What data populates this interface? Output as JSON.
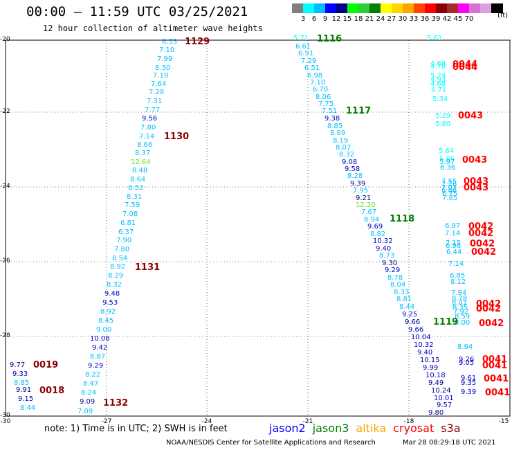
{
  "header": {
    "title": "00:00 – 11:59 UTC 03/25/2021",
    "subtitle": "12 hour collection of altimeter wave heights"
  },
  "legend": {
    "unit": "(ft)",
    "colors": [
      "#808080",
      "#00ffff",
      "#00bfff",
      "#0000ff",
      "#00008b",
      "#00ff00",
      "#32cd32",
      "#008000",
      "#ffff00",
      "#ffd700",
      "#ffa500",
      "#ff4500",
      "#ff0000",
      "#8b0000",
      "#a52a2a",
      "#ff00ff",
      "#da70d6",
      "#dda0dd",
      "#000000"
    ],
    "labels": [
      "3",
      "6",
      "9",
      "12",
      "15",
      "18",
      "21",
      "24",
      "27",
      "30",
      "33",
      "36",
      "39",
      "42",
      "45",
      "70"
    ]
  },
  "axes": {
    "y_ticks": [
      "-20",
      "-22",
      "-24",
      "-26",
      "-28",
      "-30"
    ],
    "x_ticks": [
      "-30",
      "-27",
      "-24",
      "-21",
      "-18",
      "-15"
    ]
  },
  "tracks": [
    {
      "points": [
        [
          "6.33",
          234,
          56,
          "#00bfff"
        ],
        [
          "7.10",
          230,
          68,
          "#00bfff"
        ],
        [
          "7.99",
          227,
          81,
          "#00bfff"
        ],
        [
          "8.30",
          224,
          94,
          "#00bfff"
        ],
        [
          "7.19",
          221,
          105,
          "#00bfff"
        ],
        [
          "7.64",
          218,
          117,
          "#00bfff"
        ],
        [
          "7.28",
          215,
          129,
          "#00bfff"
        ],
        [
          "7.31",
          212,
          142,
          "#00bfff"
        ],
        [
          "7.77",
          209,
          155,
          "#00bfff"
        ],
        [
          "9.56",
          205,
          167,
          "#0000cd"
        ],
        [
          "7.80",
          203,
          180,
          "#00bfff"
        ],
        [
          "7.14",
          201,
          193,
          "#00bfff"
        ],
        [
          "8.66",
          198,
          205,
          "#00bfff"
        ],
        [
          "8.37",
          195,
          217,
          "#00bfff"
        ],
        [
          "12.64",
          189,
          230,
          "#66dd22"
        ],
        [
          "8.48",
          191,
          242,
          "#00bfff"
        ],
        [
          "8.64",
          188,
          255,
          "#00bfff"
        ],
        [
          "8.52",
          185,
          267,
          "#00bfff"
        ],
        [
          "8.31",
          183,
          280,
          "#00bfff"
        ],
        [
          "7.59",
          180,
          292,
          "#00bfff"
        ],
        [
          "7.08",
          177,
          305,
          "#00bfff"
        ],
        [
          "6.81",
          174,
          318,
          "#00bfff"
        ],
        [
          "6.37",
          171,
          331,
          "#00bfff"
        ],
        [
          "7.90",
          168,
          343,
          "#00bfff"
        ],
        [
          "7.80",
          165,
          356,
          "#00bfff"
        ],
        [
          "8.54",
          162,
          369,
          "#00bfff"
        ],
        [
          "8.92",
          159,
          381,
          "#00bfff"
        ],
        [
          "8.29",
          156,
          394,
          "#00bfff"
        ],
        [
          "8.32",
          154,
          407,
          "#00bfff"
        ],
        [
          "9.48",
          151,
          420,
          "#0000cd"
        ],
        [
          "9.53",
          148,
          433,
          "#0000cd"
        ],
        [
          "8.92",
          145,
          446,
          "#00bfff"
        ],
        [
          "8.45",
          142,
          459,
          "#00bfff"
        ],
        [
          "9.00",
          139,
          472,
          "#00bfff"
        ],
        [
          "10.08",
          130,
          485,
          "#0000cd"
        ],
        [
          "9.42",
          133,
          498,
          "#0000cd"
        ],
        [
          "8.87",
          130,
          511,
          "#00bfff"
        ],
        [
          "9.29",
          127,
          524,
          "#0000cd"
        ],
        [
          "8.22",
          123,
          537,
          "#00bfff"
        ],
        [
          "8.47",
          120,
          550,
          "#00bfff"
        ],
        [
          "8.24",
          117,
          563,
          "#00bfff"
        ],
        [
          "9.09",
          115,
          576,
          "#00008b"
        ],
        [
          "7.09",
          112,
          590,
          "#00bfff"
        ]
      ]
    },
    {
      "points": [
        [
          "9.77",
          14,
          523,
          "#00008b"
        ],
        [
          "9.33",
          18,
          536,
          "#0000cd"
        ],
        [
          "8.85",
          20,
          549,
          "#00bfff"
        ],
        [
          "9.91",
          23,
          559,
          "#00008b"
        ],
        [
          "9.15",
          26,
          572,
          "#0000cd"
        ],
        [
          "8.44",
          29,
          585,
          "#00bfff"
        ]
      ]
    },
    {
      "points": [
        [
          "5.71",
          424,
          51,
          "#00ffff"
        ],
        [
          "6.61",
          427,
          63,
          "#00bfff"
        ],
        [
          "6.91",
          431,
          73,
          "#00bfff"
        ],
        [
          "7.29",
          435,
          84,
          "#00bfff"
        ],
        [
          "6.51",
          440,
          94,
          "#00bfff"
        ],
        [
          "6.98",
          444,
          105,
          "#00bfff"
        ],
        [
          "7.10",
          448,
          115,
          "#00bfff"
        ],
        [
          "6.70",
          452,
          125,
          "#00bfff"
        ],
        [
          "8.06",
          456,
          136,
          "#00bfff"
        ],
        [
          "7.75",
          460,
          146,
          "#00bfff"
        ],
        [
          "7.51",
          465,
          156,
          "#00bfff"
        ],
        [
          "9.38",
          469,
          167,
          "#0000cd"
        ],
        [
          "8.85",
          473,
          178,
          "#00bfff"
        ],
        [
          "8.69",
          477,
          188,
          "#00bfff"
        ],
        [
          "8.19",
          481,
          199,
          "#00bfff"
        ],
        [
          "8.07",
          485,
          209,
          "#00bfff"
        ],
        [
          "8.32",
          490,
          219,
          "#00bfff"
        ],
        [
          "9.08",
          494,
          230,
          "#0000cd"
        ],
        [
          "9.58",
          498,
          240,
          "#0000cd"
        ],
        [
          "8.28",
          502,
          250,
          "#00bfff"
        ],
        [
          "9.39",
          506,
          261,
          "#00008b"
        ],
        [
          "7.95",
          510,
          271,
          "#00bfff"
        ],
        [
          "9.21",
          514,
          282,
          "#00008b"
        ],
        [
          "12.20",
          514,
          292,
          "#66dd22"
        ],
        [
          "7.67",
          522,
          302,
          "#00bfff"
        ],
        [
          "8.94",
          526,
          313,
          "#00bfff"
        ],
        [
          "9.69",
          531,
          323,
          "#0000cd"
        ],
        [
          "8.82",
          535,
          334,
          "#00bfff"
        ],
        [
          "10.32",
          539,
          344,
          "#0000cd"
        ],
        [
          "9.40",
          543,
          355,
          "#0000cd"
        ],
        [
          "8.73",
          548,
          365,
          "#00bfff"
        ],
        [
          "9.30",
          552,
          376,
          "#00008b"
        ],
        [
          "9.29",
          556,
          386,
          "#0000cd"
        ],
        [
          "8.78",
          560,
          397,
          "#00bfff"
        ],
        [
          "8.04",
          564,
          407,
          "#00bfff"
        ],
        [
          "8.33",
          569,
          418,
          "#00bfff"
        ],
        [
          "8.81",
          573,
          428,
          "#00bfff"
        ],
        [
          "8.44",
          577,
          439,
          "#00bfff"
        ],
        [
          "9.25",
          581,
          450,
          "#0000cd"
        ],
        [
          "9.66",
          585,
          461,
          "#00008b"
        ],
        [
          "9.66",
          590,
          472,
          "#0000cd"
        ],
        [
          "10.04",
          594,
          483,
          "#0000cd"
        ],
        [
          "10.32",
          598,
          494,
          "#0000cd"
        ],
        [
          "9.40",
          603,
          505,
          "#0000cd"
        ],
        [
          "10.15",
          607,
          516,
          "#00008b"
        ],
        [
          "9.99",
          611,
          527,
          "#0000cd"
        ],
        [
          "10.18",
          615,
          538,
          "#0000cd"
        ],
        [
          "9.49",
          619,
          549,
          "#00008b"
        ],
        [
          "10.24",
          623,
          560,
          "#00008b"
        ],
        [
          "10.01",
          627,
          571,
          "#0000cd"
        ],
        [
          "9.57",
          631,
          581,
          "#0000cd"
        ],
        [
          "9.80",
          619,
          592,
          "#00008b"
        ]
      ]
    },
    {
      "points": [
        [
          "5.61",
          617,
          51,
          "#00ffff"
        ],
        [
          "4.68",
          622,
          88,
          "#00ffff"
        ],
        [
          "4.70",
          622,
          92,
          "#00ffff"
        ],
        [
          "5.24",
          622,
          105,
          "#00ffff"
        ],
        [
          "4.93",
          622,
          111,
          "#00ffff"
        ],
        [
          "4.68",
          622,
          117,
          "#00ffff"
        ],
        [
          "4.71",
          623,
          126,
          "#00ffff"
        ],
        [
          "5.34",
          625,
          139,
          "#00ffff"
        ],
        [
          "5.29",
          629,
          163,
          "#00ffff"
        ],
        [
          "5.80",
          629,
          175,
          "#00ffff"
        ],
        [
          "5.64",
          634,
          214,
          "#00ffff"
        ],
        [
          "5.85",
          635,
          226,
          "#00ffff"
        ],
        [
          "5.97",
          635,
          230,
          "#00bfff"
        ],
        [
          "6.36",
          636,
          238,
          "#00bfff"
        ],
        [
          "7.55",
          638,
          258,
          "#00bfff"
        ],
        [
          "7.26",
          638,
          262,
          "#00bfff"
        ],
        [
          "7.03",
          638,
          267,
          "#00bfff"
        ],
        [
          "6.86",
          638,
          271,
          "#00bfff"
        ],
        [
          "6.75",
          639,
          276,
          "#00bfff"
        ],
        [
          "7.85",
          639,
          282,
          "#00bfff"
        ],
        [
          "6.97",
          643,
          322,
          "#00bfff"
        ],
        [
          "7.14",
          643,
          333,
          "#00bfff"
        ],
        [
          "7.15",
          644,
          347,
          "#00bfff"
        ],
        [
          "6.96",
          644,
          351,
          "#00bfff"
        ],
        [
          "6.44",
          645,
          360,
          "#00bfff"
        ],
        [
          "7.14",
          648,
          377,
          "#00bfff"
        ],
        [
          "6.85",
          650,
          394,
          "#00bfff"
        ],
        [
          "8.12",
          651,
          403,
          "#00bfff"
        ],
        [
          "7.94",
          652,
          419,
          "#00bfff"
        ],
        [
          "8.78",
          653,
          427,
          "#00bfff"
        ],
        [
          "8.01",
          653,
          433,
          "#00bfff"
        ],
        [
          "8.35",
          654,
          440,
          "#00bfff"
        ],
        [
          "7.92",
          655,
          446,
          "#00bfff"
        ],
        [
          "8.59",
          657,
          453,
          "#00bfff"
        ],
        [
          "8.00",
          657,
          462,
          "#00bfff"
        ],
        [
          "8.94",
          661,
          497,
          "#00bfff"
        ],
        [
          "9.26",
          663,
          515,
          "#0000cd"
        ],
        [
          "9.05",
          663,
          520,
          "#0000cd"
        ],
        [
          "9.61",
          666,
          542,
          "#0000cd"
        ],
        [
          "9.35",
          666,
          549,
          "#0000cd"
        ],
        [
          "9.39",
          666,
          562,
          "#0000cd"
        ]
      ]
    }
  ],
  "times": [
    [
      "1129",
      267,
      54,
      "#8b0000"
    ],
    [
      "1130",
      237,
      191,
      "#8b0000"
    ],
    [
      "1131",
      195,
      380,
      "#8b0000"
    ],
    [
      "1132",
      149,
      576,
      "#8b0000"
    ],
    [
      "0019",
      48,
      521,
      "#8b0000"
    ],
    [
      "0018",
      57,
      558,
      "#8b0000"
    ],
    [
      "1116",
      458,
      50,
      "#008000"
    ],
    [
      "1117",
      500,
      154,
      "#008000"
    ],
    [
      "1118",
      563,
      310,
      "#008000"
    ],
    [
      "1119",
      626,
      459,
      "#008000"
    ],
    [
      "0044",
      654,
      87,
      "#ff0000"
    ],
    [
      "0044",
      654,
      91,
      "#ff0000"
    ],
    [
      "0043",
      662,
      161,
      "#ff0000"
    ],
    [
      "0043",
      668,
      225,
      "#ff0000"
    ],
    [
      "0043",
      670,
      256,
      "#ff0000"
    ],
    [
      "0043",
      670,
      265,
      "#ff0000"
    ],
    [
      "0042",
      677,
      321,
      "#ff0000"
    ],
    [
      "0042",
      677,
      331,
      "#ff0000"
    ],
    [
      "0042",
      679,
      346,
      "#ff0000"
    ],
    [
      "0042",
      681,
      358,
      "#ff0000"
    ],
    [
      "0042",
      688,
      433,
      "#ff0000"
    ],
    [
      "0042",
      688,
      440,
      "#ff0000"
    ],
    [
      "0042",
      692,
      461,
      "#ff0000"
    ],
    [
      "0041",
      697,
      513,
      "#ff0000"
    ],
    [
      "0041",
      697,
      522,
      "#ff0000"
    ],
    [
      "0041",
      699,
      541,
      "#ff0000"
    ],
    [
      "0041",
      701,
      561,
      "#ff0000"
    ]
  ],
  "footer": {
    "note": "note: 1) Time is in UTC; 2) SWH is in feet",
    "satellites": [
      {
        "name": "jason2",
        "color": "#0000ff"
      },
      {
        "name": "jason3",
        "color": "#008000"
      },
      {
        "name": "altika",
        "color": "#ffa500"
      },
      {
        "name": "cryosat",
        "color": "#ff0000"
      },
      {
        "name": "s3a",
        "color": "#8b0000"
      }
    ],
    "credit": "NOAA/NESDIS Center for Satellite Applications and Research",
    "timestamp": "Mar 28 08:29:18 UTC 2021"
  }
}
